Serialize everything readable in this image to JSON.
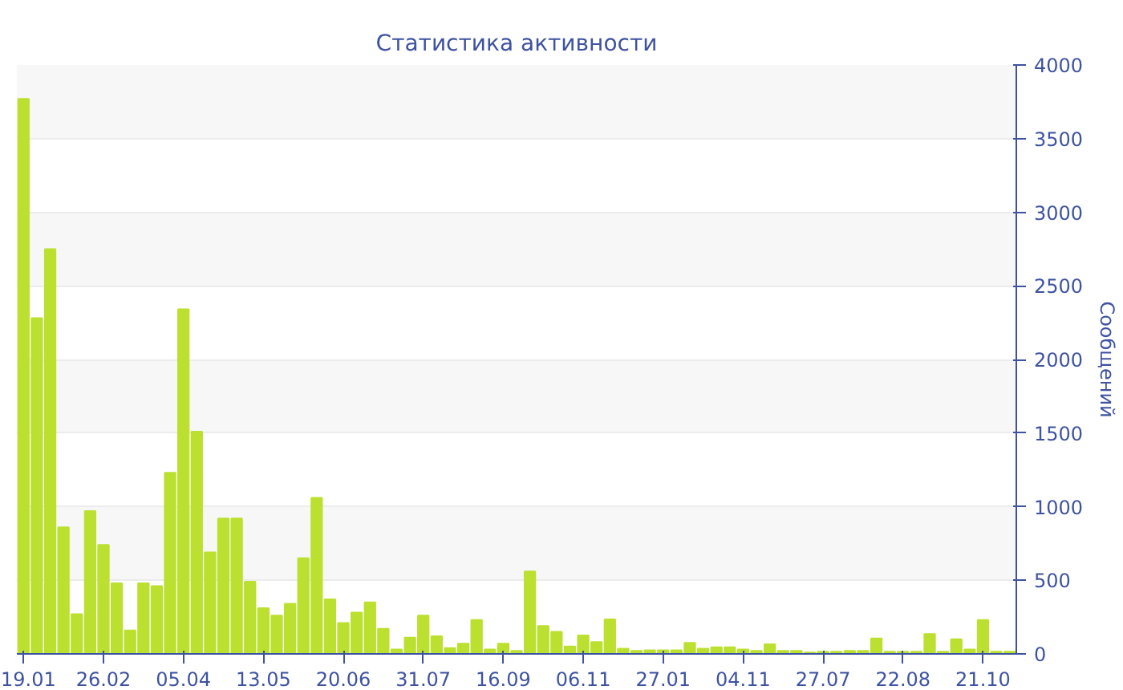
{
  "chart_data": {
    "type": "bar",
    "title": "Статистика активности",
    "ylabel": "Сообщений",
    "categories": [
      "19.01",
      null,
      null,
      null,
      null,
      null,
      "26.02",
      null,
      null,
      null,
      null,
      null,
      "05.04",
      null,
      null,
      null,
      null,
      null,
      "13.05",
      null,
      null,
      null,
      null,
      null,
      "20.06",
      null,
      null,
      null,
      null,
      null,
      "31.07",
      null,
      null,
      null,
      null,
      null,
      "16.09",
      null,
      null,
      null,
      null,
      null,
      "06.11",
      null,
      null,
      null,
      null,
      null,
      "27.01",
      null,
      null,
      null,
      null,
      null,
      "04.11",
      null,
      null,
      null,
      null,
      null,
      "27.07",
      null,
      null,
      null,
      null,
      null,
      "22.08",
      null,
      null,
      null,
      null,
      null,
      "21.10",
      null,
      null
    ],
    "values": [
      3770,
      2280,
      2750,
      860,
      270,
      970,
      740,
      480,
      160,
      480,
      460,
      1230,
      2340,
      1510,
      690,
      920,
      920,
      490,
      310,
      260,
      340,
      650,
      1060,
      370,
      210,
      280,
      350,
      170,
      30,
      110,
      260,
      120,
      40,
      70,
      230,
      30,
      70,
      20,
      560,
      190,
      150,
      50,
      125,
      80,
      235,
      35,
      20,
      25,
      25,
      25,
      75,
      35,
      45,
      45,
      30,
      20,
      65,
      20,
      20,
      10,
      15,
      15,
      20,
      20,
      105,
      15,
      15,
      15,
      135,
      15,
      100,
      30,
      230,
      15,
      15
    ],
    "color": "#bbe02f",
    "ylim": [
      0,
      4000
    ],
    "yticks": [
      0,
      500,
      1000,
      1500,
      2000,
      2500,
      3000,
      3500,
      4000
    ],
    "grid": "y"
  }
}
